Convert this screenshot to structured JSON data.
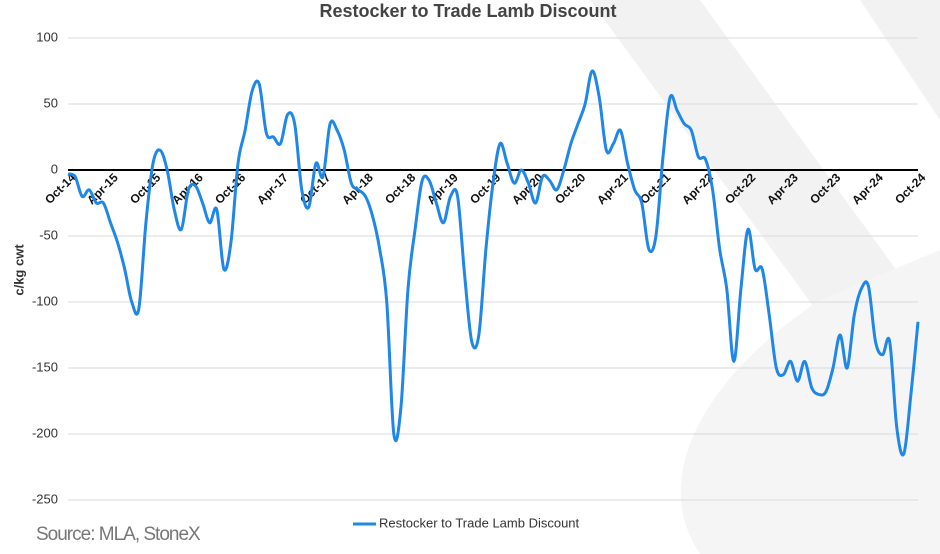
{
  "chart_data": {
    "type": "line",
    "title": "Restocker to Trade Lamb Discount",
    "y_label": "c/kg cwt",
    "source": "Source: MLA, StoneX",
    "categories": [
      "Oct-14",
      null,
      null,
      null,
      null,
      null,
      "Apr-15",
      null,
      null,
      null,
      null,
      null,
      "Oct-15",
      null,
      null,
      null,
      null,
      null,
      "Apr-16",
      null,
      null,
      null,
      null,
      null,
      "Oct-16",
      null,
      null,
      null,
      null,
      null,
      "Apr-17",
      null,
      null,
      null,
      null,
      null,
      "Oct-17",
      null,
      null,
      null,
      null,
      null,
      "Apr-18",
      null,
      null,
      null,
      null,
      null,
      "Oct-18",
      null,
      null,
      null,
      null,
      null,
      "Apr-19",
      null,
      null,
      null,
      null,
      null,
      "Oct-19",
      null,
      null,
      null,
      null,
      null,
      "Apr-20",
      null,
      null,
      null,
      null,
      null,
      "Oct-20",
      null,
      null,
      null,
      null,
      null,
      "Apr-21",
      null,
      null,
      null,
      null,
      null,
      "Oct-21",
      null,
      null,
      null,
      null,
      null,
      "Apr-22",
      null,
      null,
      null,
      null,
      null,
      "Oct-22",
      null,
      null,
      null,
      null,
      null,
      "Apr-23",
      null,
      null,
      null,
      null,
      null,
      "Oct-23",
      null,
      null,
      null,
      null,
      null,
      "Apr-24",
      null,
      null,
      null,
      null,
      null,
      "Oct-24"
    ],
    "series": [
      {
        "name": "Restocker to Trade Lamb Discount",
        "color": "#1f87e8",
        "values": [
          -3,
          -5,
          -20,
          -15,
          -25,
          -25,
          -40,
          -55,
          -75,
          -100,
          -105,
          -40,
          5,
          15,
          0,
          -30,
          -45,
          -15,
          -12,
          -25,
          -40,
          -30,
          -75,
          -55,
          5,
          30,
          60,
          65,
          28,
          25,
          20,
          42,
          35,
          -15,
          -28,
          5,
          -5,
          35,
          30,
          15,
          -10,
          -15,
          -20,
          -35,
          -60,
          -100,
          -200,
          -180,
          -90,
          -45,
          -8,
          -8,
          -25,
          -40,
          -20,
          -20,
          -80,
          -130,
          -125,
          -60,
          -10,
          20,
          5,
          -10,
          0,
          -10,
          -25,
          -5,
          -8,
          -15,
          0,
          20,
          35,
          50,
          75,
          55,
          15,
          20,
          30,
          5,
          -15,
          -25,
          -60,
          -50,
          10,
          55,
          45,
          35,
          30,
          10,
          8,
          -15,
          -60,
          -90,
          -145,
          -90,
          -45,
          -75,
          -75,
          -110,
          -150,
          -155,
          -145,
          -160,
          -145,
          -165,
          -170,
          -168,
          -150,
          -125,
          -150,
          -110,
          -90,
          -88,
          -130,
          -140,
          -130,
          -195,
          -215,
          -170,
          -115
        ]
      }
    ],
    "ylim": [
      -250,
      100
    ],
    "yticks": [
      100,
      50,
      0,
      -50,
      -100,
      -150,
      -200,
      -250
    ],
    "grid": true,
    "legend": "bottom"
  }
}
